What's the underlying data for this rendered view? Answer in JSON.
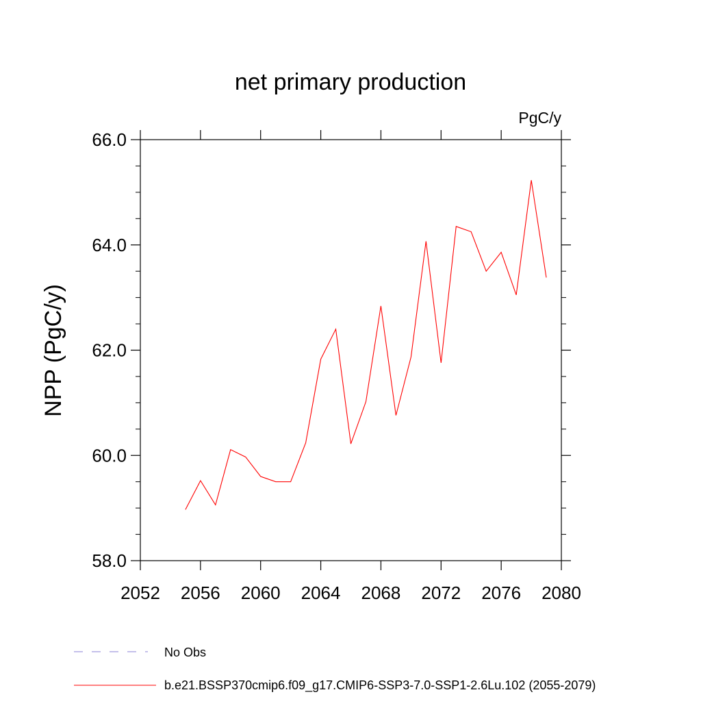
{
  "chart_data": {
    "type": "line",
    "title": "net primary production",
    "units_label": "PgC/y",
    "ylabel": "NPP  (PgC/y)",
    "xlabel": "",
    "xlim": [
      2052,
      2080
    ],
    "ylim": [
      58,
      66
    ],
    "x_ticks": [
      2052,
      2056,
      2060,
      2064,
      2068,
      2072,
      2076,
      2080
    ],
    "x_tick_labels": [
      "2052",
      "2056",
      "2060",
      "2064",
      "2068",
      "2072",
      "2076",
      "2080"
    ],
    "y_ticks": [
      58,
      60,
      62,
      64,
      66
    ],
    "y_tick_labels": [
      "58.0",
      "60.0",
      "62.0",
      "64.0",
      "66.0"
    ],
    "grid": false,
    "legend_position": "bottom-left, below plot",
    "series": [
      {
        "name": "b.e21.BSSP370cmip6.f09_g17.CMIP6-SSP3-7.0-SSP1-2.6Lu.102 (2055-2079)",
        "color": "#ff0000",
        "x": [
          2055,
          2056,
          2057,
          2058,
          2059,
          2060,
          2061,
          2062,
          2063,
          2064,
          2065,
          2066,
          2067,
          2068,
          2069,
          2070,
          2071,
          2072,
          2073,
          2074,
          2075,
          2076,
          2077,
          2078,
          2079
        ],
        "values": [
          58.97,
          59.52,
          59.06,
          60.11,
          59.97,
          59.6,
          59.5,
          59.5,
          60.24,
          61.83,
          62.4,
          60.22,
          61.02,
          62.84,
          60.76,
          61.87,
          64.07,
          61.76,
          64.35,
          64.25,
          63.5,
          63.86,
          63.05,
          65.23,
          63.38
        ]
      }
    ],
    "legend": [
      {
        "label": "No Obs",
        "color": "#8a7fd6",
        "style": "dashed"
      },
      {
        "label": "b.e21.BSSP370cmip6.f09_g17.CMIP6-SSP3-7.0-SSP1-2.6Lu.102 (2055-2079)",
        "color": "#ff0000",
        "style": "solid"
      }
    ]
  }
}
